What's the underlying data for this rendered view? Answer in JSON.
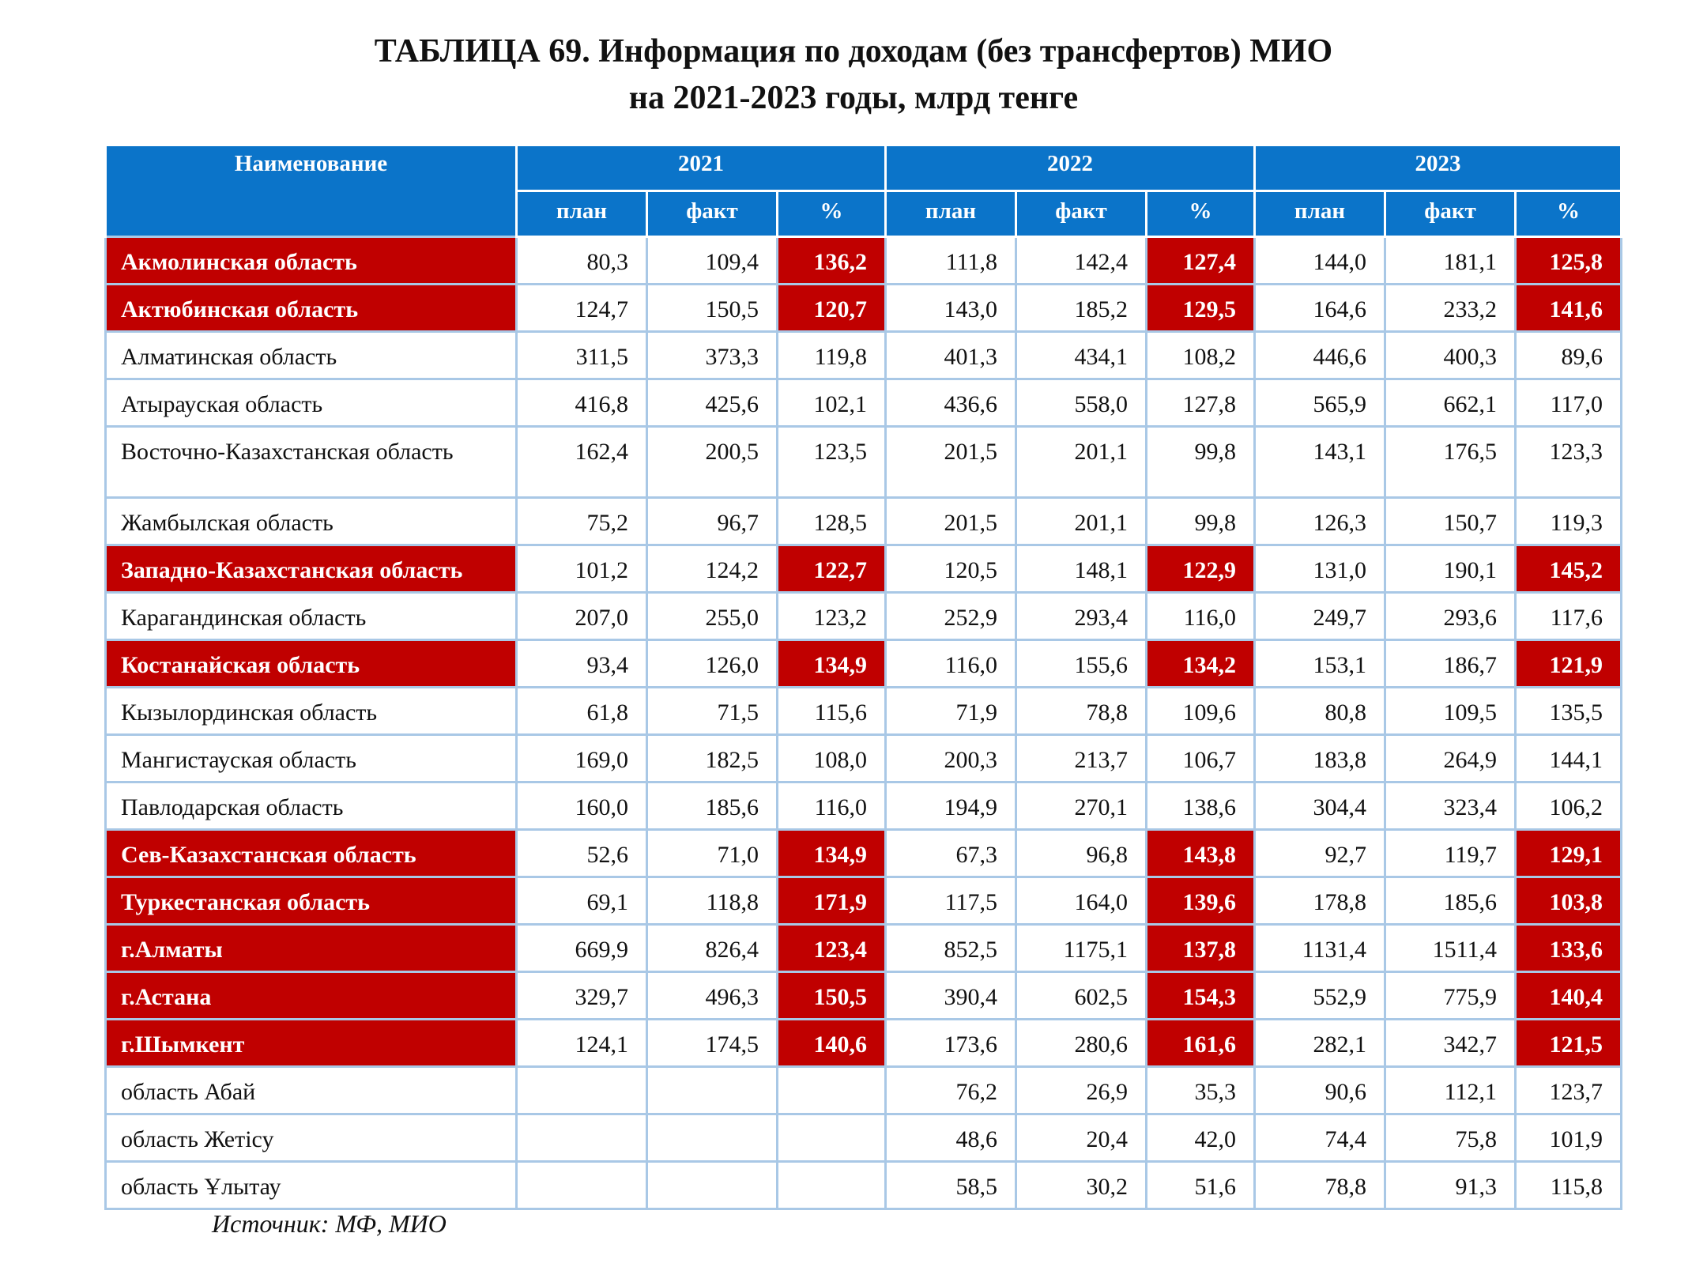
{
  "title": {
    "line1": "ТАБЛИЦА 69. Информация по доходам (без трансфертов) МИО",
    "line2": "на 2021-2023 годы, млрд тенге"
  },
  "header": {
    "name": "Наименование",
    "years": [
      "2021",
      "2022",
      "2023"
    ],
    "sub": [
      "план",
      "факт",
      "%"
    ]
  },
  "rows": [
    {
      "name": "Акмолинская область",
      "hl": true,
      "v": [
        "80,3",
        "109,4",
        "136,2",
        "111,8",
        "142,4",
        "127,4",
        "144,0",
        "181,1",
        "125,8"
      ]
    },
    {
      "name": "Актюбинская область",
      "hl": true,
      "v": [
        "124,7",
        "150,5",
        "120,7",
        "143,0",
        "185,2",
        "129,5",
        "164,6",
        "233,2",
        "141,6"
      ]
    },
    {
      "name": "Алматинская область",
      "hl": false,
      "v": [
        "311,5",
        "373,3",
        "119,8",
        "401,3",
        "434,1",
        "108,2",
        "446,6",
        "400,3",
        "89,6"
      ]
    },
    {
      "name": "Атырауская область",
      "hl": false,
      "v": [
        "416,8",
        "425,6",
        "102,1",
        "436,6",
        "558,0",
        "127,8",
        "565,9",
        "662,1",
        "117,0"
      ]
    },
    {
      "name": "Восточно-Казахстанская область",
      "hl": false,
      "tall": true,
      "v": [
        "162,4",
        "200,5",
        "123,5",
        "201,5",
        "201,1",
        "99,8",
        "143,1",
        "176,5",
        "123,3"
      ]
    },
    {
      "name": "Жамбылская область",
      "hl": false,
      "v": [
        "75,2",
        "96,7",
        "128,5",
        "201,5",
        "201,1",
        "99,8",
        "126,3",
        "150,7",
        "119,3"
      ]
    },
    {
      "name": "Западно-Казахстанская область",
      "hl": true,
      "v": [
        "101,2",
        "124,2",
        "122,7",
        "120,5",
        "148,1",
        "122,9",
        "131,0",
        "190,1",
        "145,2"
      ]
    },
    {
      "name": "Карагандинская область",
      "hl": false,
      "v": [
        "207,0",
        "255,0",
        "123,2",
        "252,9",
        "293,4",
        "116,0",
        "249,7",
        "293,6",
        "117,6"
      ]
    },
    {
      "name": "Костанайская область",
      "hl": true,
      "v": [
        "93,4",
        "126,0",
        "134,9",
        "116,0",
        "155,6",
        "134,2",
        "153,1",
        "186,7",
        "121,9"
      ]
    },
    {
      "name": "Кызылординская область",
      "hl": false,
      "v": [
        "61,8",
        "71,5",
        "115,6",
        "71,9",
        "78,8",
        "109,6",
        "80,8",
        "109,5",
        "135,5"
      ]
    },
    {
      "name": "Мангистауская область",
      "hl": false,
      "v": [
        "169,0",
        "182,5",
        "108,0",
        "200,3",
        "213,7",
        "106,7",
        "183,8",
        "264,9",
        "144,1"
      ]
    },
    {
      "name": "Павлодарская область",
      "hl": false,
      "v": [
        "160,0",
        "185,6",
        "116,0",
        "194,9",
        "270,1",
        "138,6",
        "304,4",
        "323,4",
        "106,2"
      ]
    },
    {
      "name": "Сев-Казахстанская область",
      "hl": true,
      "v": [
        "52,6",
        "71,0",
        "134,9",
        "67,3",
        "96,8",
        "143,8",
        "92,7",
        "119,7",
        "129,1"
      ]
    },
    {
      "name": "Туркестанская область",
      "hl": true,
      "v": [
        "69,1",
        "118,8",
        "171,9",
        "117,5",
        "164,0",
        "139,6",
        "178,8",
        "185,6",
        "103,8"
      ]
    },
    {
      "name": "г.Алматы",
      "hl": true,
      "v": [
        "669,9",
        "826,4",
        "123,4",
        "852,5",
        "1175,1",
        "137,8",
        "1131,4",
        "1511,4",
        "133,6"
      ]
    },
    {
      "name": "г.Астана",
      "hl": true,
      "v": [
        "329,7",
        "496,3",
        "150,5",
        "390,4",
        "602,5",
        "154,3",
        "552,9",
        "775,9",
        "140,4"
      ]
    },
    {
      "name": "г.Шымкент",
      "hl": true,
      "v": [
        "124,1",
        "174,5",
        "140,6",
        "173,6",
        "280,6",
        "161,6",
        "282,1",
        "342,7",
        "121,5"
      ]
    },
    {
      "name": "область Абай",
      "hl": false,
      "v": [
        "",
        "",
        "",
        "76,2",
        "26,9",
        "35,3",
        "90,6",
        "112,1",
        "123,7"
      ]
    },
    {
      "name": "область Жетісу",
      "hl": false,
      "v": [
        "",
        "",
        "",
        "48,6",
        "20,4",
        "42,0",
        "74,4",
        "75,8",
        "101,9"
      ]
    },
    {
      "name": "область Ұлытау",
      "hl": false,
      "v": [
        "",
        "",
        "",
        "58,5",
        "30,2",
        "51,6",
        "78,8",
        "91,3",
        "115,8"
      ]
    }
  ],
  "colors": {
    "header_bg": "#0b74c9",
    "highlight": "#c00000",
    "grid": "#a9c8e6"
  },
  "source": "Источник: МФ, МИО"
}
